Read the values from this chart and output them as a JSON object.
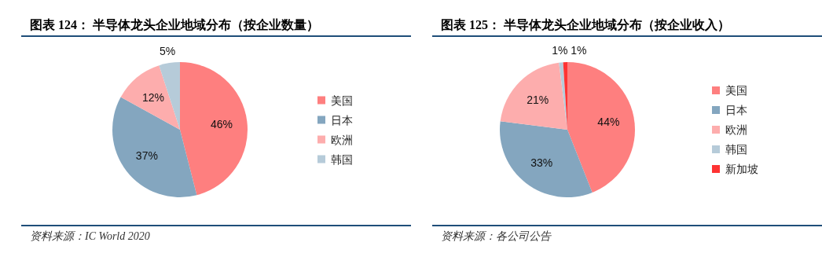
{
  "chart_data": [
    {
      "type": "pie",
      "title": "图表 124： 半导体龙头企业地域分布（按企业数量）",
      "categories": [
        "美国",
        "日本",
        "欧洲",
        "韩国"
      ],
      "values": [
        46,
        37,
        12,
        5
      ],
      "colors": [
        "#fe7f7f",
        "#84a6bf",
        "#fdadad",
        "#b6cbd9"
      ],
      "value_labels": [
        "46%",
        "37%",
        "12%",
        "5%"
      ],
      "legend": "right",
      "annotations": [
        "资料来源：IC World 2020"
      ]
    },
    {
      "type": "pie",
      "title": "图表 125： 半导体龙头企业地域分布（按企业收入）",
      "categories": [
        "美国",
        "日本",
        "欧洲",
        "韩国",
        "新加坡"
      ],
      "values": [
        44,
        33,
        21,
        1,
        1
      ],
      "colors": [
        "#fe7f7f",
        "#84a6bf",
        "#fdadad",
        "#b6cbd9",
        "#fe3333"
      ],
      "value_labels": [
        "44%",
        "33%",
        "21%",
        "1%",
        "1%"
      ],
      "legend": "right",
      "annotations": [
        "资料来源：各公司公告"
      ]
    }
  ]
}
